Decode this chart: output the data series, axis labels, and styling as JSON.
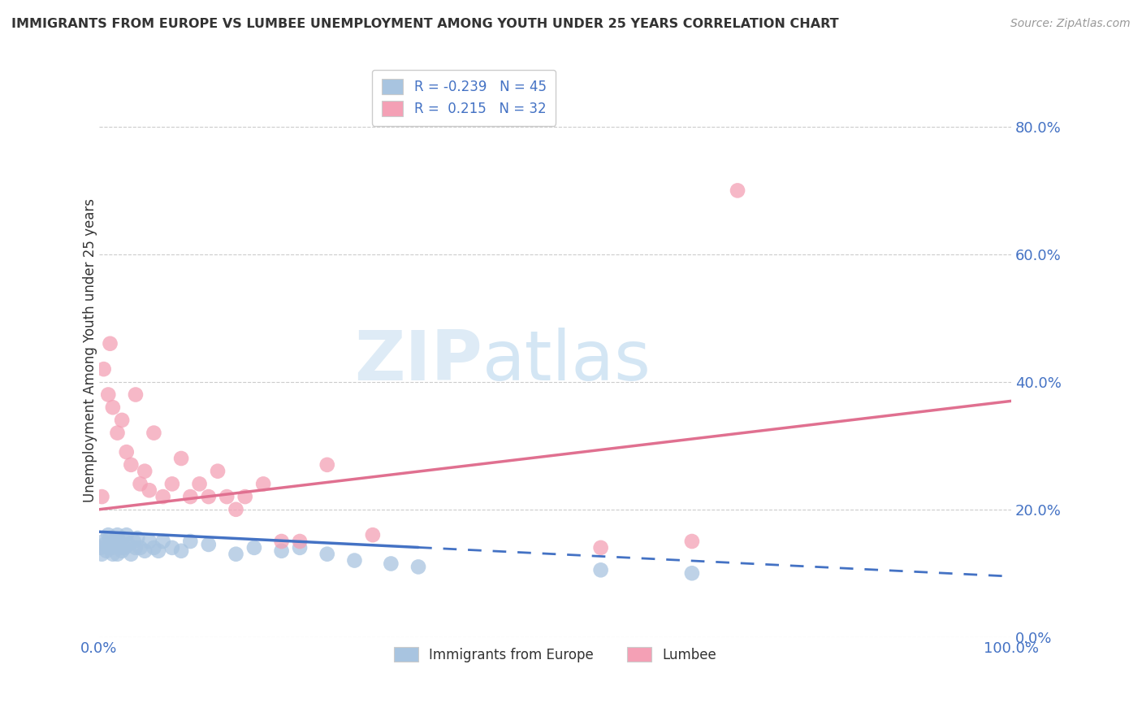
{
  "title": "IMMIGRANTS FROM EUROPE VS LUMBEE UNEMPLOYMENT AMONG YOUTH UNDER 25 YEARS CORRELATION CHART",
  "source": "Source: ZipAtlas.com",
  "watermark_zip": "ZIP",
  "watermark_atlas": "atlas",
  "ylabel": "Unemployment Among Youth under 25 years",
  "legend_labels": [
    "Immigrants from Europe",
    "Lumbee"
  ],
  "legend_R": [
    -0.239,
    0.215
  ],
  "legend_N": [
    45,
    32
  ],
  "blue_color": "#a8c4e0",
  "pink_color": "#f4a0b5",
  "blue_line_color": "#4472c4",
  "pink_line_color": "#e07090",
  "blue_scatter_x": [
    0.2,
    0.3,
    0.5,
    0.6,
    0.8,
    1.0,
    1.0,
    1.2,
    1.4,
    1.5,
    1.6,
    1.8,
    2.0,
    2.0,
    2.2,
    2.4,
    2.5,
    2.6,
    2.8,
    3.0,
    3.2,
    3.5,
    3.8,
    4.0,
    4.2,
    4.5,
    5.0,
    5.5,
    6.0,
    6.5,
    7.0,
    8.0,
    9.0,
    10.0,
    12.0,
    15.0,
    17.0,
    20.0,
    22.0,
    25.0,
    28.0,
    32.0,
    35.0,
    55.0,
    65.0
  ],
  "blue_scatter_y": [
    14.0,
    13.0,
    15.0,
    14.5,
    13.5,
    16.0,
    14.0,
    15.5,
    14.0,
    13.0,
    15.0,
    14.5,
    16.0,
    13.0,
    15.0,
    14.0,
    13.5,
    15.5,
    14.0,
    16.0,
    14.5,
    13.0,
    15.0,
    14.0,
    15.5,
    14.0,
    13.5,
    15.0,
    14.0,
    13.5,
    15.0,
    14.0,
    13.5,
    15.0,
    14.5,
    13.0,
    14.0,
    13.5,
    14.0,
    13.0,
    12.0,
    11.5,
    11.0,
    10.5,
    10.0
  ],
  "pink_scatter_x": [
    0.3,
    0.5,
    1.0,
    1.2,
    1.5,
    2.0,
    2.5,
    3.0,
    3.5,
    4.0,
    4.5,
    5.0,
    5.5,
    6.0,
    7.0,
    8.0,
    9.0,
    10.0,
    11.0,
    12.0,
    13.0,
    14.0,
    15.0,
    16.0,
    18.0,
    20.0,
    22.0,
    25.0,
    30.0,
    55.0,
    65.0,
    70.0
  ],
  "pink_scatter_y": [
    22.0,
    42.0,
    38.0,
    46.0,
    36.0,
    32.0,
    34.0,
    29.0,
    27.0,
    38.0,
    24.0,
    26.0,
    23.0,
    32.0,
    22.0,
    24.0,
    28.0,
    22.0,
    24.0,
    22.0,
    26.0,
    22.0,
    20.0,
    22.0,
    24.0,
    15.0,
    15.0,
    27.0,
    16.0,
    14.0,
    15.0,
    70.0
  ],
  "xmin": 0.0,
  "xmax": 100.0,
  "ymin": 0.0,
  "ymax": 90.0,
  "yticks": [
    0,
    20,
    40,
    60,
    80
  ],
  "ytick_labels": [
    "0.0%",
    "20.0%",
    "40.0%",
    "60.0%",
    "80.0%"
  ],
  "xtick_labels": [
    "0.0%",
    "100.0%"
  ],
  "background_color": "#ffffff",
  "grid_color": "#cccccc",
  "title_color": "#333333",
  "tick_label_color": "#4472c4",
  "blue_trend_intercept": 16.5,
  "blue_trend_slope": -0.07,
  "pink_trend_intercept": 20.0,
  "pink_trend_slope": 0.17
}
